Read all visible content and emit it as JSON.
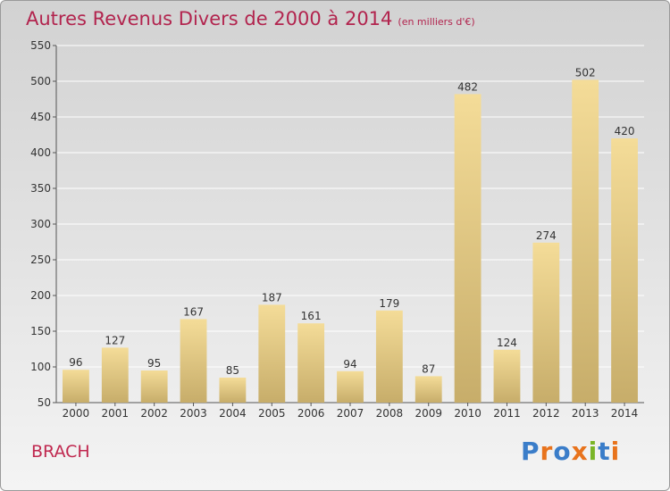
{
  "header": {
    "title": "Autres Revenus Divers de 2000 à 2014",
    "unit": "(en milliers d'€)"
  },
  "commune": "BRACH",
  "logo": {
    "text": "Proxiti",
    "colors": [
      "#3a7dc9",
      "#e8731c",
      "#3a7dc9",
      "#e8731c",
      "#7ab528",
      "#3a7dc9",
      "#e8731c"
    ]
  },
  "colors": {
    "title": "#b2244e",
    "bar_light": "#f4dc98",
    "bar_dark": "#c7ad6a",
    "grid": "#ffffff"
  },
  "chart_data": {
    "type": "bar",
    "title": "Autres Revenus Divers de 2000 à 2014",
    "subtitle": "(en milliers d'€)",
    "categories": [
      "2000",
      "2001",
      "2002",
      "2003",
      "2004",
      "2005",
      "2006",
      "2007",
      "2008",
      "2009",
      "2010",
      "2011",
      "2012",
      "2013",
      "2014"
    ],
    "values": [
      96,
      127,
      95,
      167,
      85,
      187,
      161,
      94,
      179,
      87,
      482,
      124,
      274,
      502,
      420
    ],
    "ylim": [
      50,
      550
    ],
    "yticks": [
      50,
      100,
      150,
      200,
      250,
      300,
      350,
      400,
      450,
      500,
      550
    ],
    "grid": true,
    "data_labels": true
  }
}
